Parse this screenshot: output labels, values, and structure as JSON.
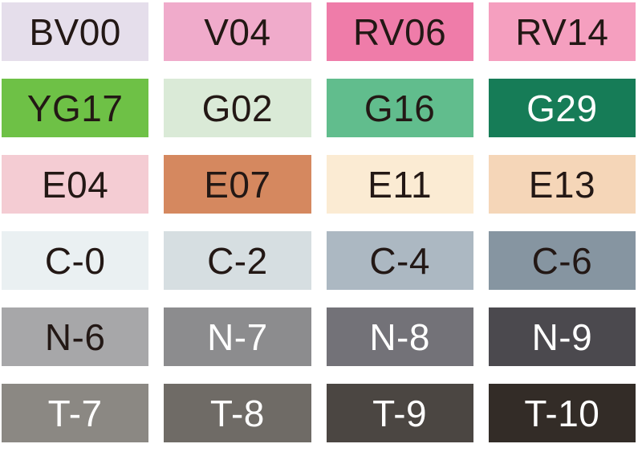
{
  "page": {
    "background": "#FFFFFF"
  },
  "palette": {
    "columns": 4,
    "rows": 6,
    "label_colors": {
      "dark": "#231815",
      "light": "#FFFFFF"
    },
    "swatches": [
      {
        "code": "BV00",
        "bg": "#E5DEEB",
        "label_tone": "dark"
      },
      {
        "code": "V04",
        "bg": "#F0ABCB",
        "label_tone": "dark"
      },
      {
        "code": "RV06",
        "bg": "#EF7CA9",
        "label_tone": "dark"
      },
      {
        "code": "RV14",
        "bg": "#F59FBF",
        "label_tone": "dark"
      },
      {
        "code": "YG17",
        "bg": "#6EC146",
        "label_tone": "dark"
      },
      {
        "code": "G02",
        "bg": "#DAEAD7",
        "label_tone": "dark"
      },
      {
        "code": "G16",
        "bg": "#61BD8D",
        "label_tone": "dark"
      },
      {
        "code": "G29",
        "bg": "#167C57",
        "label_tone": "light"
      },
      {
        "code": "E04",
        "bg": "#F4CCD3",
        "label_tone": "dark"
      },
      {
        "code": "E07",
        "bg": "#D5885F",
        "label_tone": "dark"
      },
      {
        "code": "E11",
        "bg": "#FBEBD3",
        "label_tone": "dark"
      },
      {
        "code": "E13",
        "bg": "#F5D6B8",
        "label_tone": "dark"
      },
      {
        "code": "C-0",
        "bg": "#EAF0F2",
        "label_tone": "dark"
      },
      {
        "code": "C-2",
        "bg": "#D6DEE1",
        "label_tone": "dark"
      },
      {
        "code": "C-4",
        "bg": "#ACB8C2",
        "label_tone": "dark"
      },
      {
        "code": "C-6",
        "bg": "#8695A1",
        "label_tone": "dark"
      },
      {
        "code": "N-6",
        "bg": "#A7A7A9",
        "label_tone": "dark"
      },
      {
        "code": "N-7",
        "bg": "#8C8C8E",
        "label_tone": "light"
      },
      {
        "code": "N-8",
        "bg": "#737278",
        "label_tone": "light"
      },
      {
        "code": "N-9",
        "bg": "#4B494E",
        "label_tone": "light"
      },
      {
        "code": "T-7",
        "bg": "#8B8883",
        "label_tone": "light"
      },
      {
        "code": "T-8",
        "bg": "#6F6B66",
        "label_tone": "light"
      },
      {
        "code": "T-9",
        "bg": "#4B4642",
        "label_tone": "light"
      },
      {
        "code": "T-10",
        "bg": "#332C27",
        "label_tone": "light"
      }
    ]
  }
}
